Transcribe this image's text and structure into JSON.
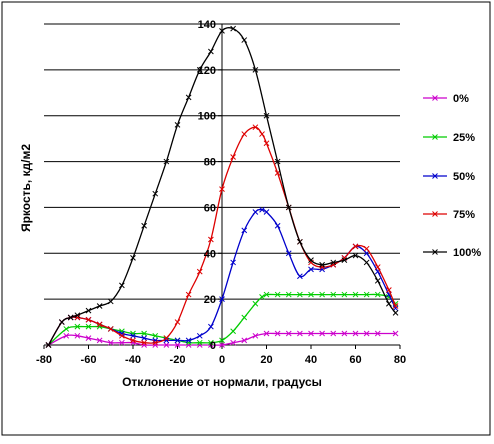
{
  "chart_data": {
    "type": "line",
    "title": "",
    "xlabel": "Отклонение от нормали, градусы",
    "ylabel": "Яркость, кд/м2",
    "xlim": [
      -80,
      80
    ],
    "ylim": [
      0,
      140
    ],
    "x_ticks": [
      "-80",
      "-60",
      "-40",
      "-20",
      "0",
      "20",
      "40",
      "60",
      "80"
    ],
    "y_ticks": [
      "0",
      "20",
      "40",
      "60",
      "80",
      "100",
      "120",
      "140"
    ],
    "grid": "horizontal",
    "legend_position": "right",
    "series": [
      {
        "name": "0%",
        "color": "#cc00cc",
        "points": [
          [
            -78,
            0
          ],
          [
            -70,
            4
          ],
          [
            -65,
            4
          ],
          [
            -60,
            3
          ],
          [
            -55,
            2
          ],
          [
            -50,
            1
          ],
          [
            -45,
            1
          ],
          [
            -40,
            1
          ],
          [
            -35,
            0
          ],
          [
            -30,
            0
          ],
          [
            -25,
            0
          ],
          [
            -20,
            0
          ],
          [
            -15,
            0
          ],
          [
            -10,
            0
          ],
          [
            -5,
            0
          ],
          [
            0,
            0
          ],
          [
            5,
            1
          ],
          [
            10,
            2
          ],
          [
            15,
            4
          ],
          [
            20,
            5
          ],
          [
            25,
            5
          ],
          [
            30,
            5
          ],
          [
            35,
            5
          ],
          [
            40,
            5
          ],
          [
            45,
            5
          ],
          [
            50,
            5
          ],
          [
            55,
            5
          ],
          [
            60,
            5
          ],
          [
            65,
            5
          ],
          [
            70,
            5
          ],
          [
            78,
            5
          ]
        ]
      },
      {
        "name": "25%",
        "color": "#00cc00",
        "points": [
          [
            -78,
            0
          ],
          [
            -70,
            7
          ],
          [
            -65,
            8
          ],
          [
            -60,
            8
          ],
          [
            -55,
            8
          ],
          [
            -50,
            7
          ],
          [
            -45,
            6
          ],
          [
            -40,
            5
          ],
          [
            -35,
            5
          ],
          [
            -30,
            4
          ],
          [
            -25,
            3
          ],
          [
            -20,
            2
          ],
          [
            -15,
            1
          ],
          [
            -10,
            1
          ],
          [
            -5,
            1
          ],
          [
            0,
            2
          ],
          [
            5,
            6
          ],
          [
            10,
            12
          ],
          [
            15,
            18
          ],
          [
            18,
            21
          ],
          [
            20,
            22
          ],
          [
            25,
            22
          ],
          [
            30,
            22
          ],
          [
            35,
            22
          ],
          [
            40,
            22
          ],
          [
            45,
            22
          ],
          [
            50,
            22
          ],
          [
            55,
            22
          ],
          [
            60,
            22
          ],
          [
            65,
            22
          ],
          [
            70,
            22
          ],
          [
            75,
            21
          ],
          [
            78,
            18
          ]
        ]
      },
      {
        "name": "50%",
        "color": "#0000cc",
        "points": [
          [
            -78,
            0
          ],
          [
            -72,
            10
          ],
          [
            -68,
            12
          ],
          [
            -65,
            12
          ],
          [
            -60,
            11
          ],
          [
            -55,
            9
          ],
          [
            -50,
            7
          ],
          [
            -45,
            5
          ],
          [
            -40,
            4
          ],
          [
            -35,
            3
          ],
          [
            -30,
            2
          ],
          [
            -25,
            2
          ],
          [
            -20,
            2
          ],
          [
            -15,
            2
          ],
          [
            -10,
            4
          ],
          [
            -5,
            8
          ],
          [
            0,
            20
          ],
          [
            5,
            36
          ],
          [
            10,
            50
          ],
          [
            15,
            58
          ],
          [
            18,
            59
          ],
          [
            20,
            58
          ],
          [
            25,
            52
          ],
          [
            30,
            40
          ],
          [
            35,
            30
          ],
          [
            40,
            33
          ],
          [
            45,
            33
          ],
          [
            50,
            35
          ],
          [
            55,
            38
          ],
          [
            60,
            43
          ],
          [
            65,
            40
          ],
          [
            70,
            32
          ],
          [
            75,
            22
          ],
          [
            78,
            16
          ]
        ]
      },
      {
        "name": "75%",
        "color": "#dd0000",
        "points": [
          [
            -78,
            0
          ],
          [
            -72,
            10
          ],
          [
            -68,
            12
          ],
          [
            -65,
            12
          ],
          [
            -60,
            11
          ],
          [
            -55,
            9
          ],
          [
            -50,
            7
          ],
          [
            -45,
            4
          ],
          [
            -40,
            2
          ],
          [
            -35,
            1
          ],
          [
            -30,
            1
          ],
          [
            -25,
            3
          ],
          [
            -20,
            10
          ],
          [
            -15,
            22
          ],
          [
            -10,
            32
          ],
          [
            -5,
            46
          ],
          [
            0,
            68
          ],
          [
            5,
            82
          ],
          [
            10,
            92
          ],
          [
            15,
            95
          ],
          [
            18,
            92
          ],
          [
            20,
            88
          ],
          [
            25,
            75
          ],
          [
            30,
            60
          ],
          [
            35,
            45
          ],
          [
            40,
            36
          ],
          [
            45,
            34
          ],
          [
            50,
            35
          ],
          [
            55,
            38
          ],
          [
            60,
            43
          ],
          [
            65,
            42
          ],
          [
            70,
            34
          ],
          [
            75,
            24
          ],
          [
            78,
            17
          ]
        ]
      },
      {
        "name": "100%",
        "color": "#000000",
        "points": [
          [
            -78,
            0
          ],
          [
            -72,
            10
          ],
          [
            -68,
            12
          ],
          [
            -65,
            13
          ],
          [
            -60,
            15
          ],
          [
            -55,
            17
          ],
          [
            -50,
            19
          ],
          [
            -45,
            26
          ],
          [
            -40,
            38
          ],
          [
            -35,
            52
          ],
          [
            -30,
            66
          ],
          [
            -25,
            80
          ],
          [
            -20,
            96
          ],
          [
            -15,
            108
          ],
          [
            -10,
            120
          ],
          [
            -5,
            128
          ],
          [
            0,
            137
          ],
          [
            5,
            138
          ],
          [
            10,
            133
          ],
          [
            15,
            120
          ],
          [
            20,
            100
          ],
          [
            25,
            80
          ],
          [
            30,
            60
          ],
          [
            35,
            45
          ],
          [
            40,
            37
          ],
          [
            45,
            35
          ],
          [
            50,
            36
          ],
          [
            55,
            37
          ],
          [
            60,
            39
          ],
          [
            65,
            36
          ],
          [
            70,
            28
          ],
          [
            75,
            18
          ],
          [
            78,
            14
          ]
        ]
      }
    ]
  }
}
